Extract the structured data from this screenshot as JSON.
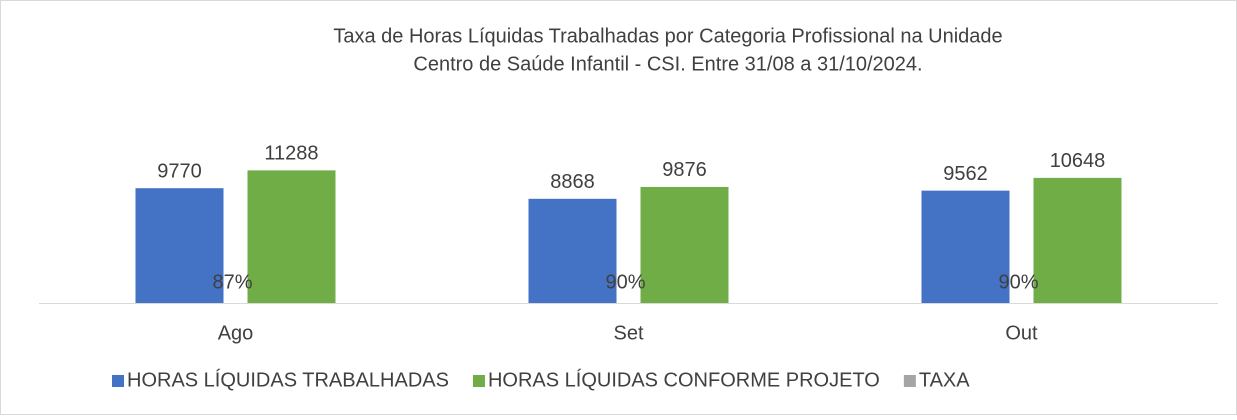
{
  "chart_data": {
    "type": "bar",
    "title": [
      "Taxa de Horas Líquidas Trabalhadas por Categoria Profissional na Unidade",
      "Centro de Saúde Infantil - CSI.  Entre 31/08 a 31/10/2024."
    ],
    "categories": [
      "Ago",
      "Set",
      "Out"
    ],
    "ylim": [
      0,
      12000
    ],
    "series": [
      {
        "name": "HORAS LÍQUIDAS TRABALHADAS",
        "color": "#4472c4",
        "values": [
          9770,
          8868,
          9562
        ]
      },
      {
        "name": "HORAS LÍQUIDAS CONFORME PROJETO",
        "color": "#70ad47",
        "values": [
          11288,
          9876,
          10648
        ]
      },
      {
        "name": "TAXA",
        "color": "#a5a5a5",
        "values": [
          0.87,
          0.9,
          0.9
        ],
        "value_labels": [
          "87%",
          "90%",
          "90%"
        ]
      }
    ],
    "legend": "bottom"
  }
}
